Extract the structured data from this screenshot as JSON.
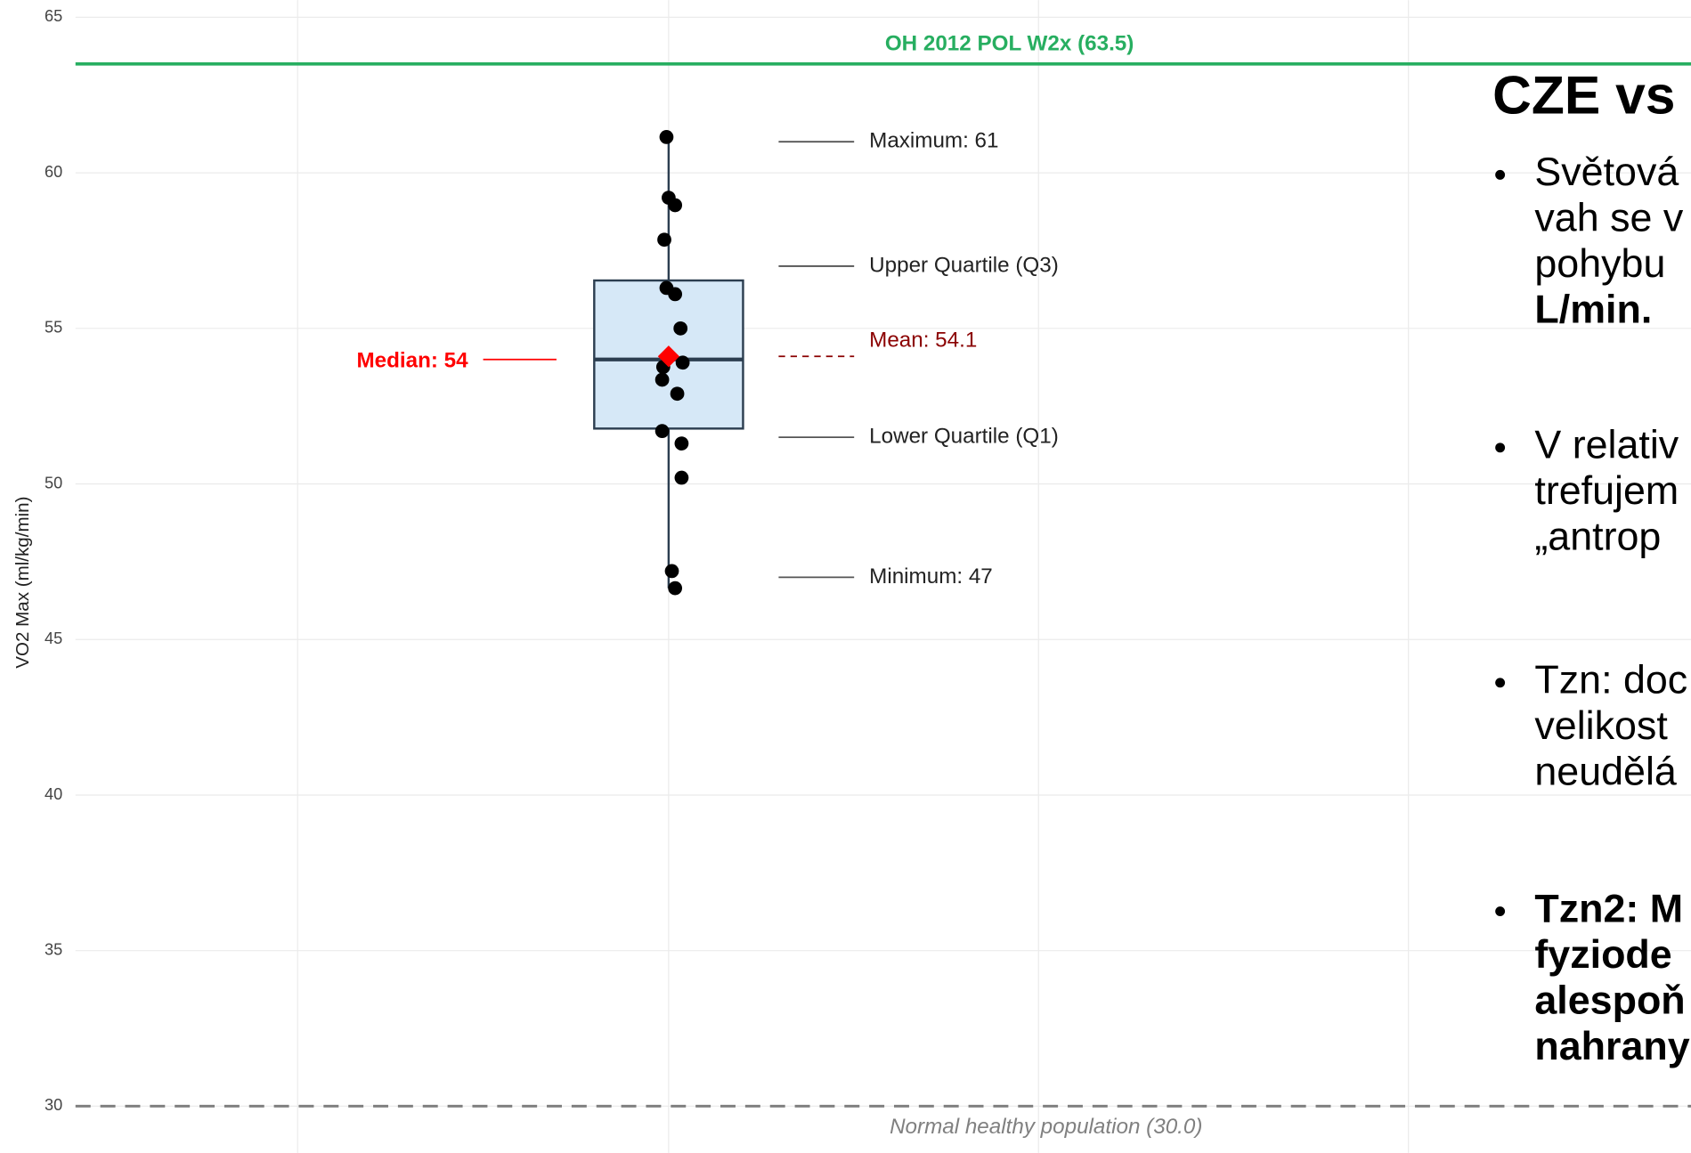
{
  "chart_data": {
    "type": "box",
    "y_label": "VO2 Max (ml/kg/min)",
    "ylim": [
      28.5,
      65.55
    ],
    "yticks": [
      30,
      35,
      40,
      45,
      50,
      55,
      60,
      65
    ],
    "grid": true,
    "box": {
      "min": 46.65,
      "q1": 51.78,
      "median": 54,
      "q3": 56.54,
      "max": 61.15,
      "color": "#d6e8f7",
      "edge": "#2c3e50"
    },
    "mean": 54.1,
    "points": [
      61.15,
      59.2,
      58.96,
      57.85,
      56.3,
      56.1,
      55.0,
      53.9,
      53.76,
      53.35,
      52.9,
      51.7,
      51.3,
      50.2,
      47.2,
      46.65
    ],
    "annotations": [
      {
        "label": "Maximum: 61",
        "value": 61
      },
      {
        "label": "Upper Quartile (Q3)",
        "value": 57
      },
      {
        "label": "Mean: 54.1",
        "value": 54.1
      },
      {
        "label": "Lower Quartile (Q1)",
        "value": 51.5
      },
      {
        "label": "Minimum: 47",
        "value": 47
      }
    ],
    "median_label": {
      "label": "Median: 54",
      "value": 54
    },
    "reference_lines": [
      {
        "label": "OH 2012 POL W2x (63.5)",
        "value": 63.5,
        "color": "#27ae60"
      },
      {
        "label": "Normal healthy population (30.0)",
        "value": 30,
        "color": "#808080"
      }
    ]
  },
  "slide": {
    "title": "CZE vs",
    "bullets": [
      {
        "lines": [
          "Světová",
          "vah se v",
          "pohybu",
          "L/min."
        ]
      },
      {
        "lines": [
          "V relativ",
          "trefujem",
          "„antrop"
        ]
      },
      {
        "lines": [
          "Tzn: doc",
          "velikost",
          "neudělá"
        ]
      },
      {
        "lines": [
          "Tzn2: M",
          "fyziode",
          "alespoň",
          "nahrany"
        ]
      }
    ]
  }
}
